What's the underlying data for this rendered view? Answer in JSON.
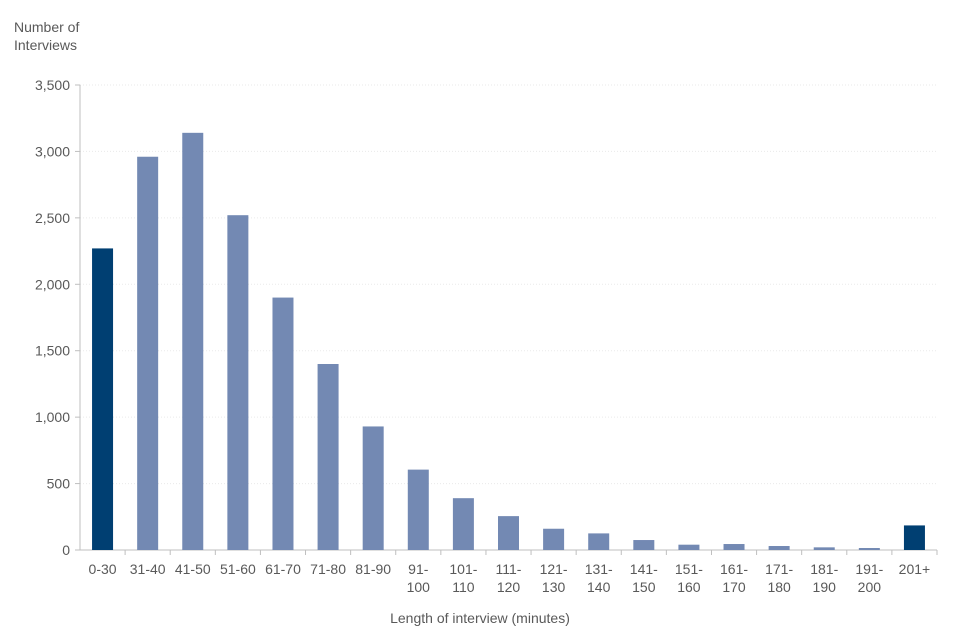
{
  "chart_data": {
    "type": "bar",
    "ylabel": [
      "Number of",
      "Interviews"
    ],
    "xlabel": "Length of interview (minutes)",
    "categories": [
      [
        "0-30"
      ],
      [
        "31-40"
      ],
      [
        "41-50"
      ],
      [
        "51-60"
      ],
      [
        "61-70"
      ],
      [
        "71-80"
      ],
      [
        "81-90"
      ],
      [
        "91-",
        "100"
      ],
      [
        "101-",
        "110"
      ],
      [
        "111-",
        "120"
      ],
      [
        "121-",
        "130"
      ],
      [
        "131-",
        "140"
      ],
      [
        "141-",
        "150"
      ],
      [
        "151-",
        "160"
      ],
      [
        "161-",
        "170"
      ],
      [
        "171-",
        "180"
      ],
      [
        "181-",
        "190"
      ],
      [
        "191-",
        "200"
      ],
      [
        "201+"
      ]
    ],
    "values": [
      2270,
      2960,
      3140,
      2520,
      1900,
      1400,
      930,
      605,
      390,
      255,
      160,
      125,
      75,
      40,
      45,
      30,
      20,
      15,
      185
    ],
    "highlight": [
      true,
      false,
      false,
      false,
      false,
      false,
      false,
      false,
      false,
      false,
      false,
      false,
      false,
      false,
      false,
      false,
      false,
      false,
      true
    ],
    "ylim": [
      0,
      3500
    ],
    "yticks": [
      0,
      500,
      1000,
      1500,
      2000,
      2500,
      3000,
      3500
    ],
    "ytick_labels": [
      "0",
      "500",
      "1,000",
      "1,500",
      "2,000",
      "2,500",
      "3,000",
      "3,500"
    ],
    "grid": true,
    "colors": {
      "bar": "#7389b3",
      "highlight": "#003f72",
      "axis": "#bfbfbf",
      "grid": "#eaeaea",
      "text": "#595959"
    }
  }
}
